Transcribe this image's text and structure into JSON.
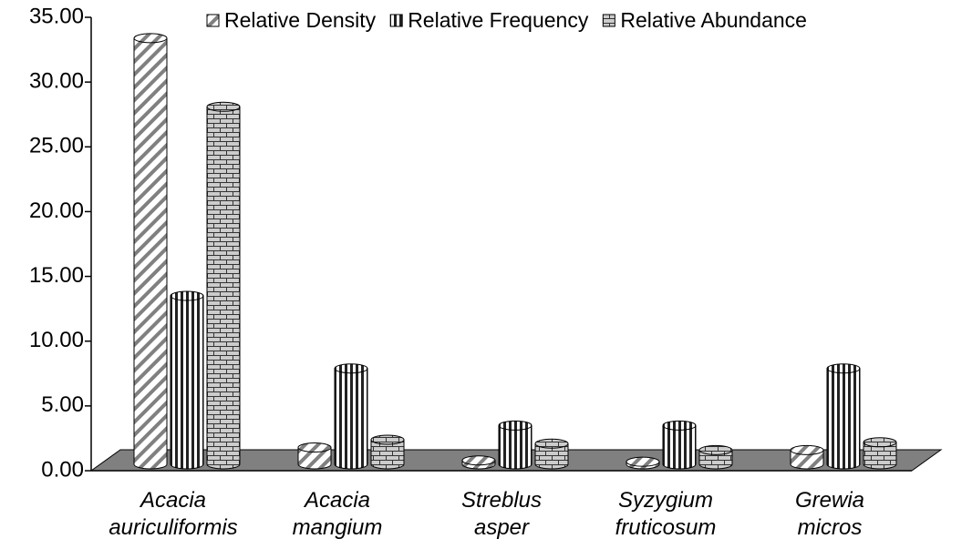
{
  "chart_data": {
    "type": "bar3d",
    "categories": [
      "Acacia\nauriculiformis",
      "Acacia\nmangium",
      "Streblus\nasper",
      "Syzygium\nfruticosum",
      "Grewia\nmicros"
    ],
    "series": [
      {
        "name": "Relative Density",
        "color": "#808080",
        "pattern": "diagonal",
        "values": [
          32.9,
          1.3,
          0.3,
          0.2,
          1.1
        ]
      },
      {
        "name": "Relative Frequency",
        "color": "#808080",
        "pattern": "vertical",
        "values": [
          13.0,
          7.4,
          3.0,
          3.0,
          7.4
        ]
      },
      {
        "name": "Relative Abundance",
        "color": "#808080",
        "pattern": "brick",
        "values": [
          27.6,
          1.9,
          1.6,
          1.1,
          1.7
        ]
      }
    ],
    "ylim": [
      0,
      35
    ],
    "yticks": [
      {
        "value": 0,
        "label": "0.00"
      },
      {
        "value": 5,
        "label": "5.00"
      },
      {
        "value": 10,
        "label": "10.00"
      },
      {
        "value": 15,
        "label": "15.00"
      },
      {
        "value": 20,
        "label": "20.00"
      },
      {
        "value": 25,
        "label": "25.00"
      },
      {
        "value": 30,
        "label": "30.00"
      },
      {
        "value": 35,
        "label": "35.00"
      }
    ],
    "legend": "top"
  }
}
